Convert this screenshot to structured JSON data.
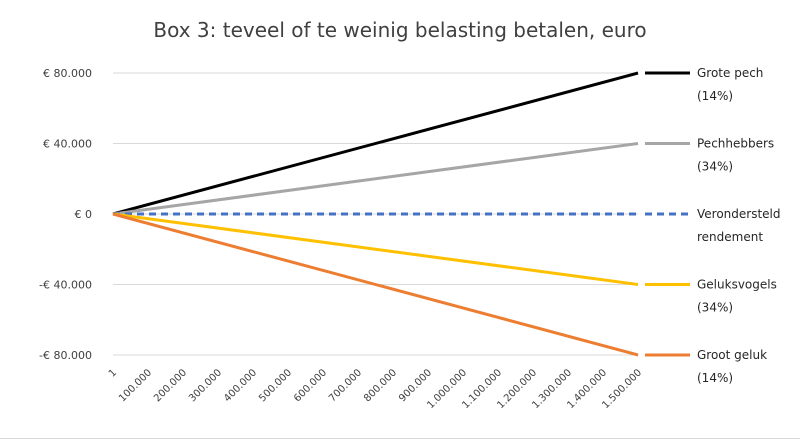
{
  "chart_data": {
    "type": "line",
    "title": "Box 3: teveel of te weinig belasting betalen, euro",
    "xlabel": "",
    "ylabel": "",
    "x": [
      1,
      1500000
    ],
    "x_tick_labels": [
      "1",
      "100.000",
      "200.000",
      "300.000",
      "400.000",
      "500.000",
      "600.000",
      "700.000",
      "800.000",
      "900.000",
      "1.000.000",
      "1.100.000",
      "1.200.000",
      "1.300.000",
      "1.400.000",
      "1.500.000"
    ],
    "ylim": [
      -80000,
      80000
    ],
    "y_ticks": [
      80000,
      40000,
      0,
      -40000,
      -80000
    ],
    "y_tick_labels": [
      "€ 80.000",
      "€ 40.000",
      "€ 0",
      "-€ 40.000",
      "-€ 80.000"
    ],
    "grid": true,
    "legend": "right",
    "series": [
      {
        "name": "Grote pech",
        "name_line2": "(14%)",
        "values": [
          0,
          80000
        ],
        "color": "#000000",
        "dash": false
      },
      {
        "name": "Pechhebbers",
        "name_line2": "(34%)",
        "values": [
          0,
          40000
        ],
        "color": "#a6a6a6",
        "dash": false
      },
      {
        "name": "Verondersteld",
        "name_line2": "rendement",
        "values": [
          0,
          0
        ],
        "color": "#4472c4",
        "dash": true
      },
      {
        "name": "Geluksvogels",
        "name_line2": "(34%)",
        "values": [
          0,
          -40000
        ],
        "color": "#ffc000",
        "dash": false
      },
      {
        "name": "Groot geluk",
        "name_line2": "(14%)",
        "values": [
          0,
          -80000
        ],
        "color": "#ed7d31",
        "dash": false
      }
    ]
  }
}
